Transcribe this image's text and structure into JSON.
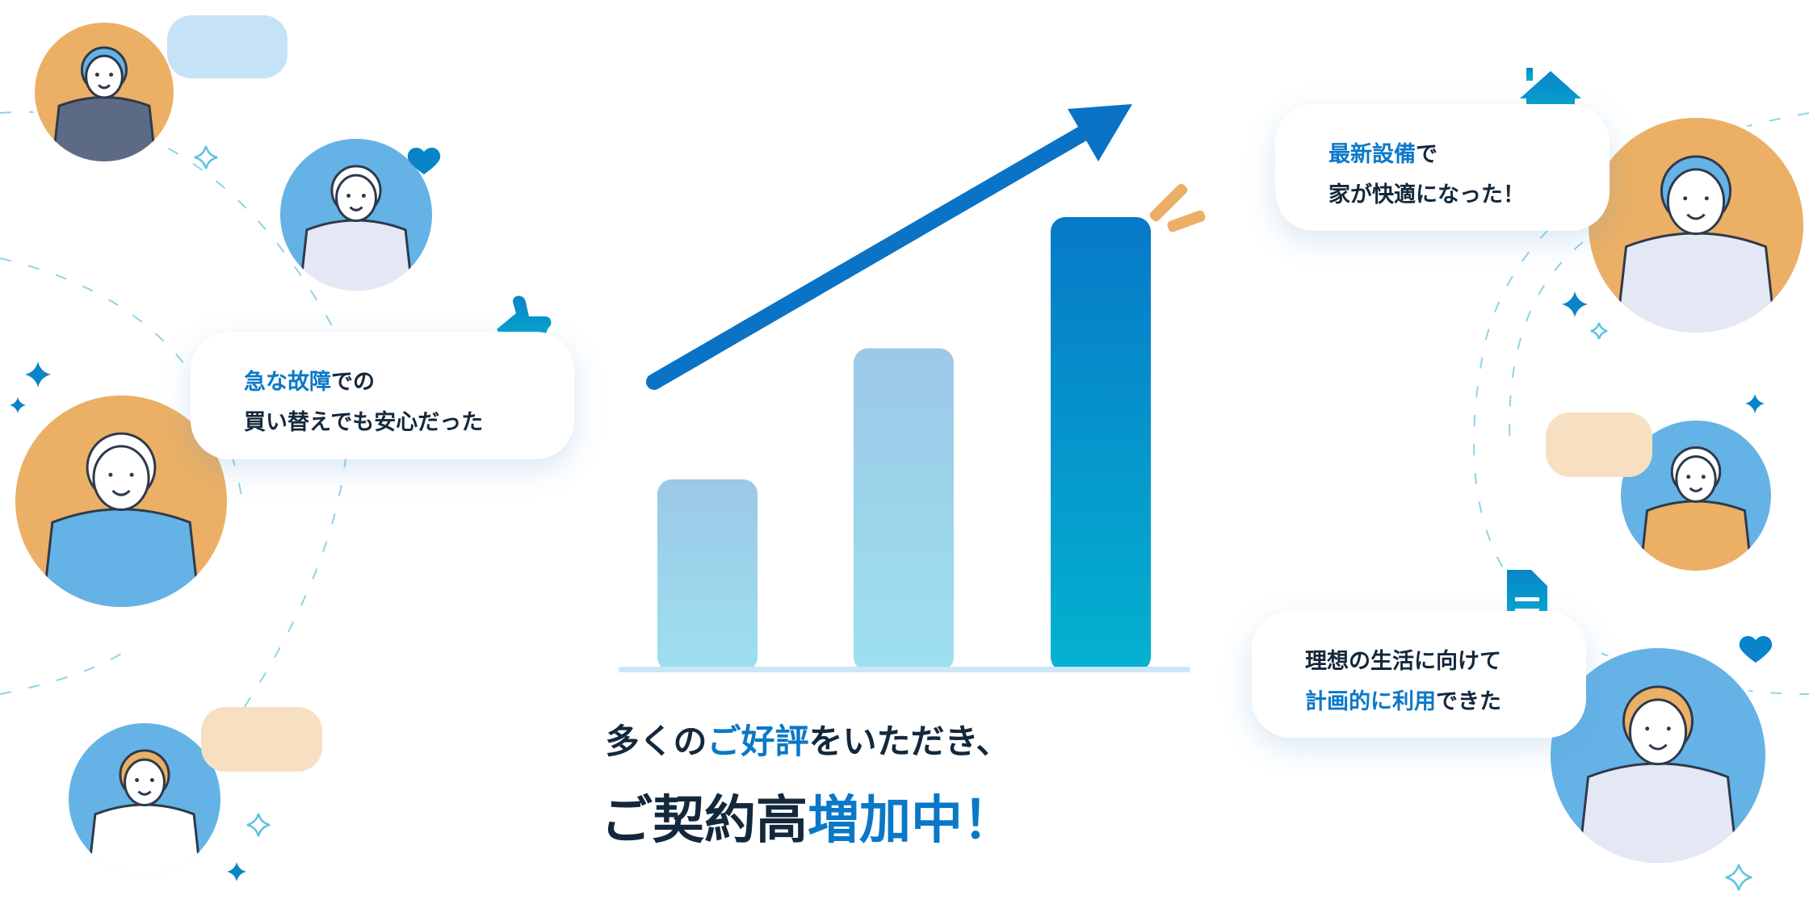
{
  "headline": {
    "line1_pre": "多くの",
    "line1_hl": "ご好評",
    "line1_post": "をいただき、",
    "line2_pre": "ご契約高",
    "line2_hl": "増加中！"
  },
  "bubbles": {
    "left": {
      "hl": "急な故障",
      "l1_post": "での",
      "l2": "買い替えでも安心だった",
      "icon": "thumbs-up-icon"
    },
    "right_top": {
      "hl": "最新設備",
      "l1_post": "で",
      "l2": "家が快適になった！",
      "icon": "house-icon"
    },
    "right_bottom": {
      "l1": "理想の生活に向けて",
      "hl": "計画的に利用",
      "l2_post": "できた",
      "icon": "document-icon"
    }
  },
  "chart_data": {
    "type": "bar",
    "categories": [
      "",
      "",
      ""
    ],
    "values": [
      1,
      1.7,
      2.4
    ],
    "trend": "up-arrow",
    "xlabel": "",
    "ylabel": ""
  },
  "colors": {
    "accent": "#0a78c8",
    "text": "#14283c",
    "orange": "#ebb065",
    "blue": "#65b3e6",
    "light_bar": "#9ccbe9"
  }
}
